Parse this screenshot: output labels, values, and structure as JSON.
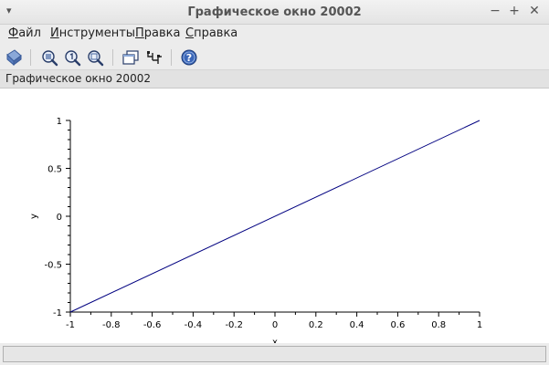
{
  "window": {
    "title": "Графическое окно 20002",
    "menu_glyph": "▾",
    "min_glyph": "−",
    "max_glyph": "+",
    "close_glyph": "✕"
  },
  "menubar": {
    "items": [
      {
        "key": "Ф",
        "rest": "айл"
      },
      {
        "key": "И",
        "rest": "нструменты"
      },
      {
        "key": "П",
        "rest": "равка"
      },
      {
        "key": "С",
        "rest": "правка"
      }
    ]
  },
  "toolbar": {
    "icons": [
      "rotate-icon",
      "zoom-grid-icon",
      "zoom-original-icon",
      "zoom-area-icon",
      "windows-icon",
      "datatip-icon",
      "help-icon"
    ]
  },
  "info": {
    "text": "Графическое окно 20002"
  },
  "chart_data": {
    "type": "line",
    "xlabel": "x",
    "ylabel": "y",
    "xlim": [
      -1,
      1
    ],
    "ylim": [
      -1,
      1
    ],
    "x_ticks": [
      "-1",
      "-0.8",
      "-0.6",
      "-0.4",
      "-0.2",
      "0",
      "0.2",
      "0.4",
      "0.6",
      "0.8",
      "1"
    ],
    "y_ticks": [
      "1",
      "0.5",
      "0",
      "-0.5",
      "-1"
    ],
    "series": [
      {
        "color": "#000080",
        "x": [
          -1,
          1
        ],
        "y": [
          -1,
          1
        ]
      }
    ]
  }
}
